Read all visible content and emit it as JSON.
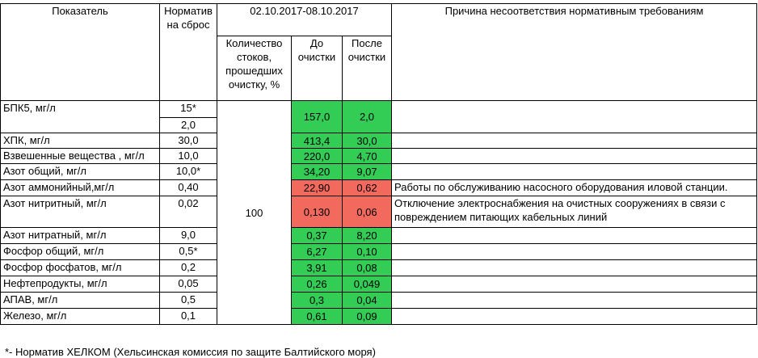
{
  "header": {
    "indicator": "Показатель",
    "norm": "Норматив на сброс",
    "period": "02.10.2017-08.10.2017",
    "reason": "Причина несоответствия нормативным требованиям",
    "share": "Количество стоков, прошедших очистку, %",
    "before": "До очистки",
    "after": "После очистки"
  },
  "share_value": "100",
  "rows": [
    {
      "name": "БПК5, мг/л",
      "norm": "15*",
      "norm2": "2,0",
      "before": "157,0",
      "after": "2,0",
      "status": "ok",
      "reason": ""
    },
    {
      "name": "ХПК, мг/л",
      "norm": "30,0",
      "before": "413,4",
      "after": "30,0",
      "status": "ok",
      "reason": ""
    },
    {
      "name": "Взвешенные вещества , мг/л",
      "norm": "10,0",
      "before": "220,0",
      "after": "4,70",
      "status": "ok",
      "reason": ""
    },
    {
      "name": "Азот общий, мг/л",
      "norm": "10,0*",
      "before": "34,20",
      "after": "9,07",
      "status": "ok",
      "reason": ""
    },
    {
      "name": "Азот аммонийный,мг/л",
      "norm": "0,40",
      "before": "22,90",
      "after": "0,62",
      "status": "bad",
      "reason": "Работы по обслуживанию насосного оборудования иловой станции."
    },
    {
      "name": "Азот нитритный, мг/л",
      "norm": "0,02",
      "before": "0,130",
      "after": "0,06",
      "status": "bad",
      "reason": "Отключение  электроснабжения на очистных сооружениях в связи с повреждением питающих кабельных линий"
    },
    {
      "name": "Азот нитратный, мг/л",
      "norm": "9,0",
      "before": "0,37",
      "after": "8,20",
      "status": "ok",
      "reason": ""
    },
    {
      "name": "Фосфор общий, мг/л",
      "norm": "0,5*",
      "before": "6,27",
      "after": "0,10",
      "status": "ok",
      "reason": ""
    },
    {
      "name": "Фосфор фосфатов, мг/л",
      "norm": "0,2",
      "before": "3,91",
      "after": "0,08",
      "status": "ok",
      "reason": ""
    },
    {
      "name": "Нефтепродукты, мг/л",
      "norm": "0,05",
      "before": "0,26",
      "after": "0,049",
      "status": "ok",
      "reason": ""
    },
    {
      "name": "АПАВ, мг/л",
      "norm": "0,5",
      "before": "0,3",
      "after": "0,04",
      "status": "ok",
      "reason": ""
    },
    {
      "name": "Железо, мг/л",
      "norm": "0,1",
      "before": "0,61",
      "after": "0,09",
      "status": "ok",
      "reason": ""
    }
  ],
  "colors": {
    "ok": "#33cc55",
    "bad": "#f26a5e"
  },
  "footnote": "*- Норматив ХЕЛКОМ (Хельсинская комиссия по защите Балтийского моря)"
}
